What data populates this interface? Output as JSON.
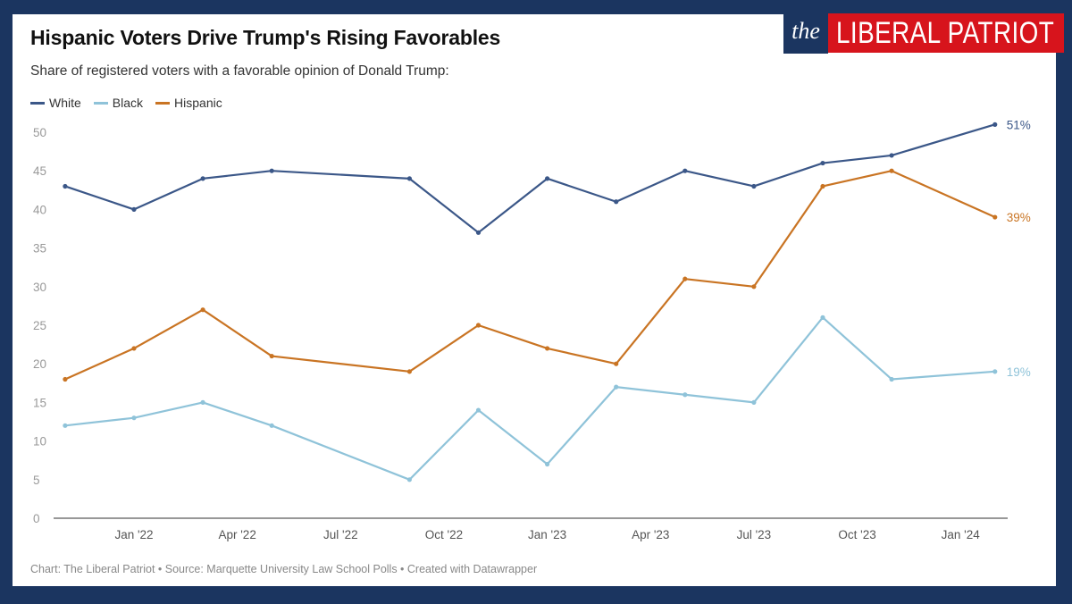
{
  "header": {
    "title": "Hispanic Voters Drive Trump's Rising Favorables",
    "subtitle": "Share of registered voters with a favorable opinion of Donald Trump:"
  },
  "logo": {
    "prefix": "the",
    "name": "LIBERAL PATRIOT",
    "colors": {
      "navy": "#1b3560",
      "red": "#d7141c"
    }
  },
  "footer": {
    "text": "Chart: The Liberal Patriot • Source: Marquette University Law School Polls • Created with Datawrapper"
  },
  "chart_data": {
    "type": "line",
    "title": "Hispanic Voters Drive Trump's Rising Favorables",
    "subtitle": "Share of registered voters with a favorable opinion of Donald Trump:",
    "xlabel": "",
    "ylabel": "",
    "ylim": [
      0,
      50
    ],
    "yticks": [
      0,
      5,
      10,
      15,
      20,
      25,
      30,
      35,
      40,
      45,
      50
    ],
    "xlim_months": [
      "2021-10",
      "2024-03"
    ],
    "x_ticks": [
      {
        "label": "Jan '22",
        "month": "2022-01"
      },
      {
        "label": "Apr '22",
        "month": "2022-04"
      },
      {
        "label": "Jul '22",
        "month": "2022-07"
      },
      {
        "label": "Oct '22",
        "month": "2022-10"
      },
      {
        "label": "Jan '23",
        "month": "2023-01"
      },
      {
        "label": "Apr '23",
        "month": "2023-04"
      },
      {
        "label": "Jul '23",
        "month": "2023-07"
      },
      {
        "label": "Oct '23",
        "month": "2023-10"
      },
      {
        "label": "Jan '24",
        "month": "2024-01"
      }
    ],
    "x": [
      "2021-11",
      "2022-01",
      "2022-03",
      "2022-05",
      "2022-09",
      "2022-11",
      "2023-01",
      "2023-03",
      "2023-05",
      "2023-07",
      "2023-09",
      "2023-11",
      "2024-02"
    ],
    "grid": false,
    "legend_position": "top-left",
    "series": [
      {
        "name": "White",
        "color": "#3b5788",
        "values": [
          43,
          40,
          44,
          45,
          44,
          37,
          44,
          41,
          45,
          43,
          46,
          47,
          51
        ],
        "end_label": "51%"
      },
      {
        "name": "Black",
        "color": "#8fc3d9",
        "values": [
          12,
          13,
          15,
          12,
          5,
          14,
          7,
          17,
          16,
          15,
          26,
          18,
          19
        ],
        "end_label": "19%"
      },
      {
        "name": "Hispanic",
        "color": "#c97423",
        "values": [
          18,
          22,
          27,
          21,
          19,
          25,
          22,
          20,
          31,
          30,
          43,
          45,
          39
        ],
        "end_label": "39%"
      }
    ]
  }
}
